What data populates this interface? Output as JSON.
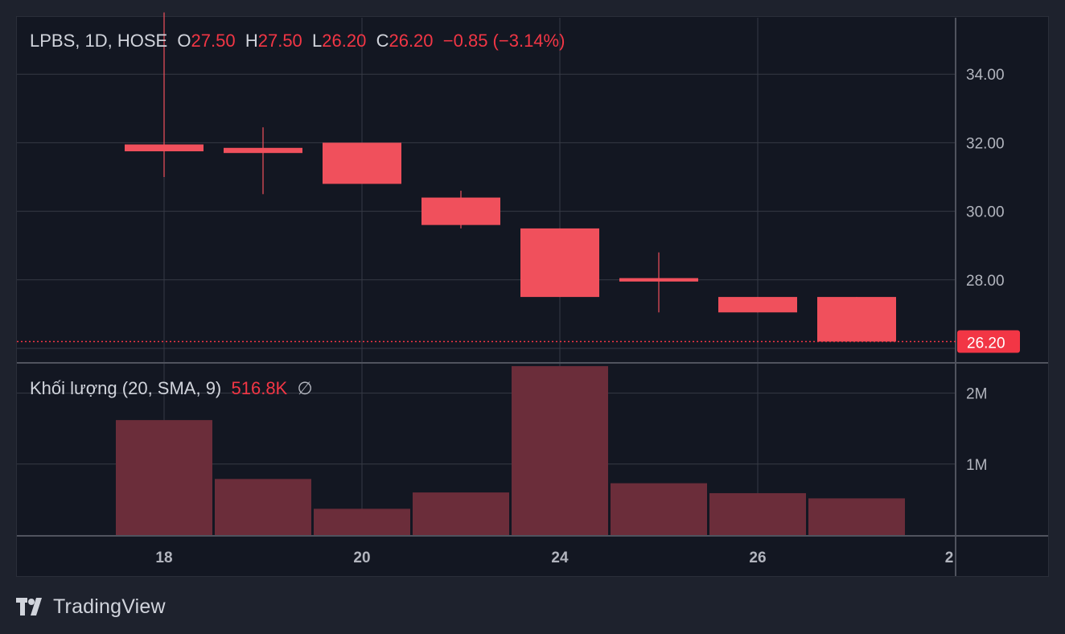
{
  "legend": {
    "symbol": "LPBS, 1D, HOSE",
    "o_label": "O",
    "o_value": "27.50",
    "h_label": "H",
    "h_value": "27.50",
    "l_label": "L",
    "l_value": "26.20",
    "c_label": "C",
    "c_value": "26.20",
    "change": "−0.85 (−3.14%)"
  },
  "volume_legend": {
    "title": "Khối lượng (20, SMA, 9)",
    "value": "516.8K",
    "symbol": "∅"
  },
  "last_price_label": "26.20",
  "branding": {
    "name": "TradingView"
  },
  "colors": {
    "background": "#131722",
    "grid": "#363a45",
    "bear": "#f0505c",
    "volume": "#6b2d3a",
    "text": "#d1d4dc"
  },
  "chart_data": {
    "type": "candlestick",
    "price_axis": {
      "ticks": [
        34,
        32,
        30,
        28
      ],
      "tick_labels": [
        "34.00",
        "32.00",
        "30.00",
        "28.00"
      ],
      "range": [
        25.6,
        35.8
      ]
    },
    "volume_axis": {
      "ticks": [
        2000000,
        1000000
      ],
      "tick_labels": [
        "2M",
        "1M"
      ],
      "range": [
        0,
        2400000
      ]
    },
    "x_axis": {
      "tick_labels": [
        "18",
        "20",
        "24",
        "26",
        "2"
      ]
    },
    "candles": [
      {
        "open": 31.95,
        "high": 35.8,
        "low": 31.0,
        "close": 31.75,
        "volume": 1620000
      },
      {
        "open": 31.85,
        "high": 32.45,
        "low": 30.5,
        "close": 31.7,
        "volume": 790000
      },
      {
        "open": 32.0,
        "high": 32.0,
        "low": 30.8,
        "close": 30.8,
        "volume": 370000
      },
      {
        "open": 30.4,
        "high": 30.6,
        "low": 29.5,
        "close": 29.6,
        "volume": 600000
      },
      {
        "open": 29.5,
        "high": 29.5,
        "low": 27.5,
        "close": 27.5,
        "volume": 2380000
      },
      {
        "open": 28.05,
        "high": 28.8,
        "low": 27.05,
        "close": 27.95,
        "volume": 730000
      },
      {
        "open": 27.5,
        "high": 27.5,
        "low": 27.05,
        "close": 27.05,
        "volume": 590000
      },
      {
        "open": 27.5,
        "high": 27.5,
        "low": 26.2,
        "close": 26.2,
        "volume": 516800
      }
    ],
    "last_price": 26.2
  }
}
